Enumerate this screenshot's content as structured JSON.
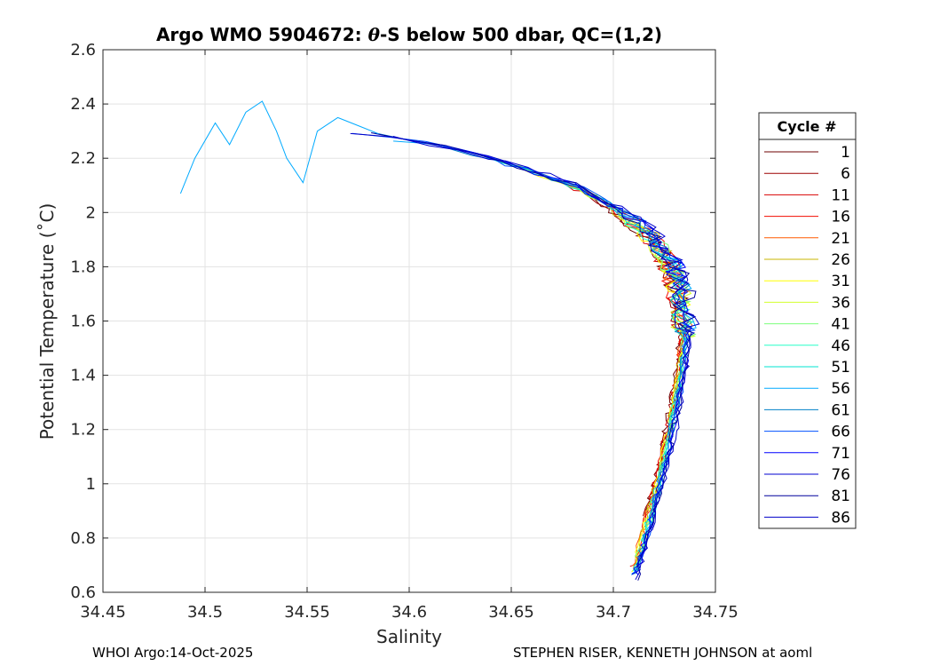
{
  "chart_data": {
    "type": "line",
    "title_prefix": "Argo WMO 5904672: ",
    "title_theta": "θ",
    "title_suffix": "-S below 500 dbar,  QC=(1,2)",
    "xlabel": "Salinity",
    "ylabel": "Potential Temperature (˚C)",
    "xlim": [
      34.45,
      34.75
    ],
    "ylim": [
      0.6,
      2.6
    ],
    "xticks": [
      "34.45",
      "34.5",
      "34.55",
      "34.6",
      "34.65",
      "34.7",
      "34.75"
    ],
    "yticks": [
      "0.6",
      "0.8",
      "1",
      "1.2",
      "1.4",
      "1.6",
      "1.8",
      "2",
      "2.2",
      "2.4",
      "2.6"
    ],
    "grid": true,
    "legend_title": "Cycle #",
    "legend_position": "right",
    "series": [
      {
        "name": "1",
        "color": "#6e0000"
      },
      {
        "name": "6",
        "color": "#9e0000"
      },
      {
        "name": "11",
        "color": "#d80000"
      },
      {
        "name": "16",
        "color": "#f20d00"
      },
      {
        "name": "21",
        "color": "#ff5a00"
      },
      {
        "name": "26",
        "color": "#c8b400"
      },
      {
        "name": "31",
        "color": "#ffff00"
      },
      {
        "name": "36",
        "color": "#d2ff2d"
      },
      {
        "name": "41",
        "color": "#7dff7d"
      },
      {
        "name": "46",
        "color": "#28ffc8"
      },
      {
        "name": "51",
        "color": "#00e6d2"
      },
      {
        "name": "56",
        "color": "#00aaff"
      },
      {
        "name": "61",
        "color": "#0080c8"
      },
      {
        "name": "66",
        "color": "#0050ff"
      },
      {
        "name": "71",
        "color": "#0000ff"
      },
      {
        "name": "76",
        "color": "#0000d2"
      },
      {
        "name": "81",
        "color": "#00009b"
      },
      {
        "name": "86",
        "color": "#0000c8"
      }
    ],
    "profile_curve": {
      "temperature": [
        0.65,
        0.8,
        1.0,
        1.2,
        1.4,
        1.55,
        1.7,
        1.8,
        1.9,
        2.0,
        2.1,
        2.2,
        2.25,
        2.3
      ],
      "salinity": [
        34.709,
        34.715,
        34.722,
        34.728,
        34.733,
        34.735,
        34.733,
        34.729,
        34.72,
        34.705,
        34.68,
        34.64,
        34.61,
        34.57
      ]
    },
    "fresh_branch": {
      "salinity": [
        34.488,
        34.495,
        34.505,
        34.512,
        34.52,
        34.528,
        34.535,
        34.54,
        34.548,
        34.555,
        34.565,
        34.575,
        34.585
      ],
      "temperature": [
        2.07,
        2.2,
        2.33,
        2.25,
        2.37,
        2.41,
        2.3,
        2.2,
        2.11,
        2.3,
        2.35,
        2.32,
        2.29
      ]
    }
  },
  "footer": {
    "left": "WHOI Argo:14-Oct-2025",
    "right": "STEPHEN RISER, KENNETH JOHNSON at aoml"
  }
}
